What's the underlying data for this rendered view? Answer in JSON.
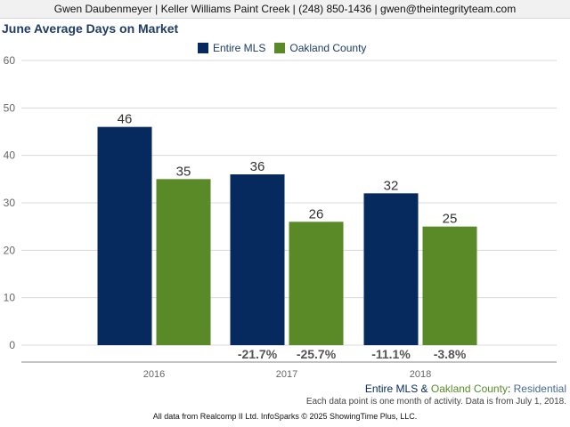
{
  "banner": {
    "text": "Gwen Daubenmeyer | Keller Williams Paint Creek | (248) 850-1436 | gwen@theintegrityteam.com"
  },
  "colors": {
    "entire_mls": "#062a5e",
    "oakland_county": "#5a8a28",
    "title": "#1f3c66",
    "axis_text": "#666666",
    "value_label": "#333333",
    "change_label": "#555555",
    "grid": "#d8d8d8"
  },
  "chart_data": {
    "type": "bar",
    "title": "June Average Days on Market",
    "categories": [
      "2016",
      "2017",
      "2018"
    ],
    "series": [
      {
        "name": "Entire MLS",
        "values": [
          46,
          36,
          32
        ],
        "changes": [
          "",
          "-21.7%",
          "-11.1%"
        ]
      },
      {
        "name": "Oakland County",
        "values": [
          35,
          26,
          25
        ],
        "changes": [
          "",
          "-25.7%",
          "-3.8%"
        ]
      }
    ],
    "yticks": [
      "0",
      "10",
      "20",
      "30",
      "40",
      "50",
      "60"
    ],
    "ylim": [
      0,
      60
    ],
    "grid": true,
    "legend": "top-center"
  },
  "footer": {
    "segment_a": "Entire MLS",
    "segment_amp": " & ",
    "segment_b": "Oakland County",
    "segment_colon": ": ",
    "segment_c": "Residential",
    "note": "Each data point is one month of activity. Data is from July 1, 2018.",
    "source": "All data from Realcomp II Ltd. InfoSparks © 2025 ShowingTime Plus, LLC."
  }
}
